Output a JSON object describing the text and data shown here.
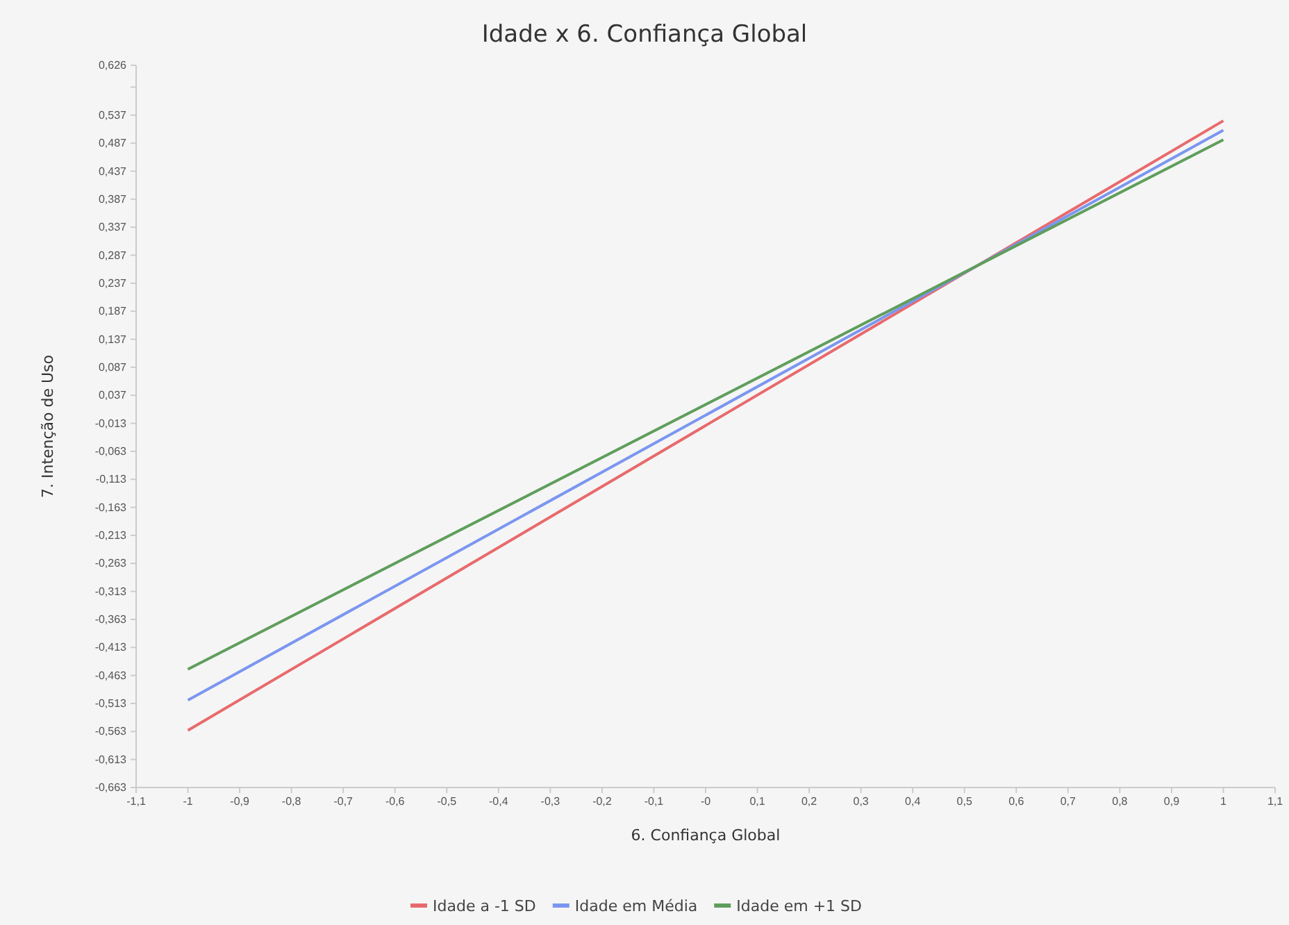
{
  "chart_data": {
    "type": "line",
    "title": "Idade x 6. Confiança Global",
    "xlabel": "6. Confiança Global",
    "ylabel": "7. Intenção de Uso",
    "x": [
      -1,
      1
    ],
    "series": [
      {
        "name": "Idade a -1 SD",
        "color": "#e86a6c",
        "values": [
          -0.561,
          0.527
        ]
      },
      {
        "name": "Idade em Média",
        "color": "#7b96f0",
        "values": [
          -0.507,
          0.51
        ]
      },
      {
        "name": "Idade em +1 SD",
        "color": "#5f9e5c",
        "values": [
          -0.452,
          0.493
        ]
      }
    ],
    "xlim": [
      -1.1,
      1.1
    ],
    "xticks": [
      {
        "value": -1.1,
        "label": "-1,1"
      },
      -1,
      {
        "value": -0.9,
        "label": "-0,9"
      },
      {
        "value": -0.8,
        "label": "-0,8"
      },
      {
        "value": -0.7,
        "label": "-0,7"
      },
      {
        "value": -0.6,
        "label": "-0,6"
      },
      {
        "value": -0.5,
        "label": "-0,5"
      },
      {
        "value": -0.4,
        "label": "-0,4"
      },
      {
        "value": -0.3,
        "label": "-0,3"
      },
      {
        "value": -0.2,
        "label": "-0,2"
      },
      {
        "value": -0.1,
        "label": "-0,1"
      },
      {
        "value": 0,
        "label": "-0"
      },
      {
        "value": 0.1,
        "label": "0,1"
      },
      {
        "value": 0.2,
        "label": "0,2"
      },
      {
        "value": 0.3,
        "label": "0,3"
      },
      {
        "value": 0.4,
        "label": "0,4"
      },
      {
        "value": 0.5,
        "label": "0,5"
      },
      {
        "value": 0.6,
        "label": "0,6"
      },
      {
        "value": 0.7,
        "label": "0,7"
      },
      {
        "value": 0.8,
        "label": "0,8"
      },
      {
        "value": 0.9,
        "label": "0,9"
      },
      1,
      {
        "value": 1.1,
        "label": "1,1"
      }
    ],
    "ylim": [
      -0.663,
      0.626
    ],
    "yticks": [
      {
        "value": -0.663,
        "label": "-0,663"
      },
      {
        "value": -0.613,
        "label": "-0,613"
      },
      {
        "value": -0.563,
        "label": "-0,563"
      },
      {
        "value": -0.513,
        "label": "-0,513"
      },
      {
        "value": -0.463,
        "label": "-0,463"
      },
      {
        "value": -0.413,
        "label": "-0,413"
      },
      {
        "value": -0.363,
        "label": "-0,363"
      },
      {
        "value": -0.313,
        "label": "-0,313"
      },
      {
        "value": -0.263,
        "label": "-0,263"
      },
      {
        "value": -0.213,
        "label": "-0,213"
      },
      {
        "value": -0.163,
        "label": "-0,163"
      },
      {
        "value": -0.113,
        "label": "-0,113"
      },
      {
        "value": -0.063,
        "label": "-0,063"
      },
      {
        "value": -0.013,
        "label": "-0,013"
      },
      {
        "value": 0.037,
        "label": "0,037"
      },
      {
        "value": 0.087,
        "label": "0,087"
      },
      {
        "value": 0.137,
        "label": "0,137"
      },
      {
        "value": 0.187,
        "label": "0,187"
      },
      {
        "value": 0.237,
        "label": "0,237"
      },
      {
        "value": 0.287,
        "label": "0,287"
      },
      {
        "value": 0.337,
        "label": "0,337"
      },
      {
        "value": 0.387,
        "label": "0,387"
      },
      {
        "value": 0.437,
        "label": "0,437"
      },
      {
        "value": 0.487,
        "label": "0,487"
      },
      {
        "value": 0.537,
        "label": "0,537"
      },
      {
        "value": 0.587,
        "label": null
      },
      {
        "value": 0.626,
        "label": "0,626"
      }
    ],
    "grid": false,
    "legend": "bottom",
    "marker": "none",
    "line_style": "solid"
  }
}
